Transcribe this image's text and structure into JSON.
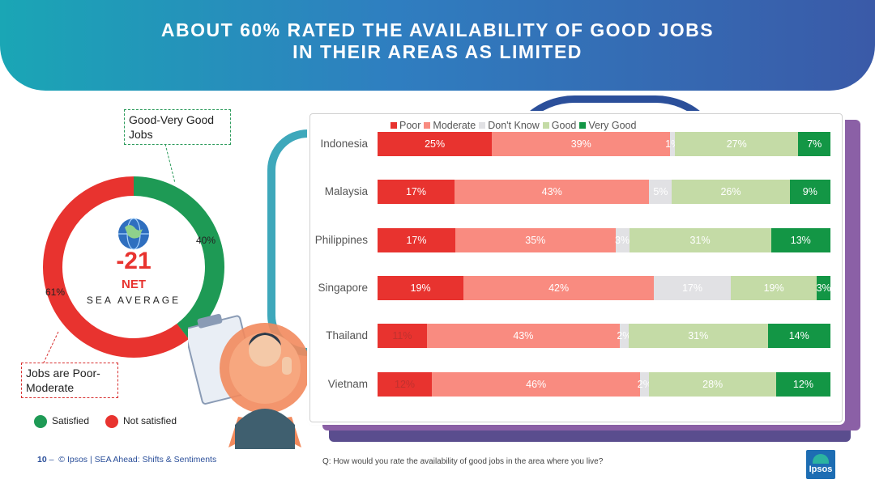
{
  "title_line1": "ABOUT 60% RATED THE AVAILABILITY OF GOOD JOBS",
  "title_line2": "IN THEIR AREAS AS LIMITED",
  "donut": {
    "net_value": "-21",
    "net_label": "NET",
    "region_label": "SEA AVERAGE",
    "good_pct_label": "40%",
    "poor_pct_label": "61%",
    "good_value": 40,
    "poor_value": 61,
    "good_color": "#1e9a55",
    "poor_color": "#e8332f",
    "callout_good": "Good-Very Good Jobs",
    "callout_poor": "Jobs are Poor-Moderate"
  },
  "satisfaction_legend": {
    "satisfied": "Satisfied",
    "not_satisfied": "Not satisfied"
  },
  "footer": {
    "page_number": "10",
    "dash": "–",
    "source": "© Ipsos | SEA Ahead: Shifts & Sentiments"
  },
  "question": "Q: How would you rate the availability of good jobs in the area where you live?",
  "logo_text": "Ipsos",
  "chart_data": {
    "type": "bar",
    "orientation": "horizontal-stacked",
    "title": "",
    "categories": [
      "Indonesia",
      "Malaysia",
      "Philippines",
      "Singapore",
      "Thailand",
      "Vietnam"
    ],
    "series": [
      {
        "name": "Poor",
        "color": "#e8332f",
        "values": [
          25,
          17,
          17,
          19,
          11,
          12
        ],
        "labels": [
          "25%",
          "17%",
          "17%",
          "19%",
          "11%",
          "12%"
        ]
      },
      {
        "name": "Moderate",
        "color": "#f98b80",
        "values": [
          39,
          43,
          35,
          42,
          43,
          46
        ],
        "labels": [
          "39%",
          "43%",
          "35%",
          "42%",
          "43%",
          "46%"
        ]
      },
      {
        "name": "Don't Know",
        "color": "#e1e1e4",
        "values": [
          1,
          5,
          3,
          17,
          2,
          2
        ],
        "labels": [
          "1%",
          "5%",
          "3%",
          "17%",
          "2%",
          "2%"
        ]
      },
      {
        "name": "Good",
        "color": "#c4dba6",
        "values": [
          27,
          26,
          31,
          19,
          31,
          28
        ],
        "labels": [
          "27%",
          "26%",
          "31%",
          "19%",
          "31%",
          "28%"
        ]
      },
      {
        "name": "Very Good",
        "color": "#139645",
        "values": [
          7,
          9,
          13,
          3,
          14,
          12
        ],
        "labels": [
          "7%",
          "9%",
          "13%",
          "3%",
          "14%",
          "12%"
        ]
      }
    ],
    "legend_position": "top"
  }
}
